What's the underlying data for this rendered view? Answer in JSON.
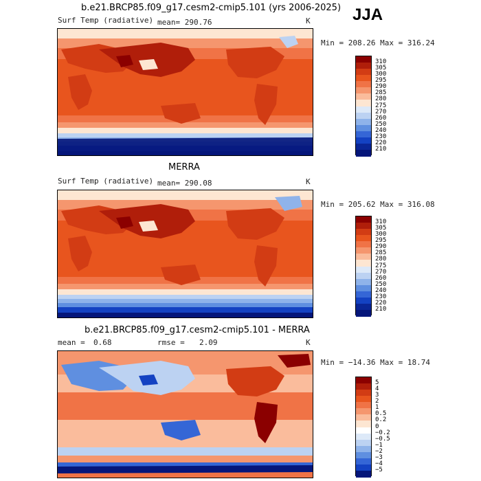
{
  "season": "JJA",
  "panels": [
    {
      "id": "model",
      "title": "b.e21.BRCP85.f09_g17.cesm2-cmip5.101 (yrs 2006-2025)",
      "variable": "Surf Temp (radiative)",
      "stat": "mean= 290.76",
      "units": "K",
      "minmax": "Min = 208.26 Max = 316.24",
      "colorbar": {
        "labels": [
          "310",
          "305",
          "300",
          "295",
          "290",
          "285",
          "280",
          "275",
          "270",
          "260",
          "250",
          "240",
          "230",
          "220",
          "210"
        ],
        "colors": [
          "#8b0000",
          "#b01e0a",
          "#d23c14",
          "#e8551e",
          "#f07346",
          "#f5966e",
          "#fabc9c",
          "#fde6d2",
          "#dde9f8",
          "#bcd2f2",
          "#8fb3ea",
          "#5f8fe0",
          "#3566d6",
          "#1442c2",
          "#0a2696",
          "#05167a"
        ]
      }
    },
    {
      "id": "obs",
      "title": "MERRA",
      "variable": "Surf Temp (radiative)",
      "stat": "mean= 290.08",
      "units": "K",
      "minmax": "Min = 205.62 Max = 316.08",
      "colorbar": {
        "labels": [
          "310",
          "305",
          "300",
          "295",
          "290",
          "285",
          "280",
          "275",
          "270",
          "260",
          "250",
          "240",
          "230",
          "220",
          "210"
        ],
        "colors": [
          "#8b0000",
          "#b01e0a",
          "#d23c14",
          "#e8551e",
          "#f07346",
          "#f5966e",
          "#fabc9c",
          "#fde6d2",
          "#dde9f8",
          "#bcd2f2",
          "#8fb3ea",
          "#5f8fe0",
          "#3566d6",
          "#1442c2",
          "#0a2696",
          "#05167a"
        ]
      }
    },
    {
      "id": "diff",
      "title": "b.e21.BRCP85.f09_g17.cesm2-cmip5.101 - MERRA",
      "mean_label": "mean =",
      "mean_value": "0.68",
      "rmse_label": "rmse =",
      "rmse_value": "2.09",
      "units": "K",
      "minmax": "Min = −14.36 Max =  18.74",
      "colorbar": {
        "labels": [
          "5",
          "4",
          "3",
          "2",
          "1",
          "0.5",
          "0.2",
          "0",
          "−0.2",
          "−0.5",
          "−1",
          "−2",
          "−3",
          "−4",
          "−5"
        ],
        "colors": [
          "#8b0000",
          "#b01e0a",
          "#d23c14",
          "#e8551e",
          "#f07346",
          "#f5966e",
          "#fabc9c",
          "#fde6d2",
          "#ffffff",
          "#dde9f8",
          "#bcd2f2",
          "#8fb3ea",
          "#5f8fe0",
          "#3566d6",
          "#1442c2",
          "#05167a"
        ]
      }
    }
  ]
}
